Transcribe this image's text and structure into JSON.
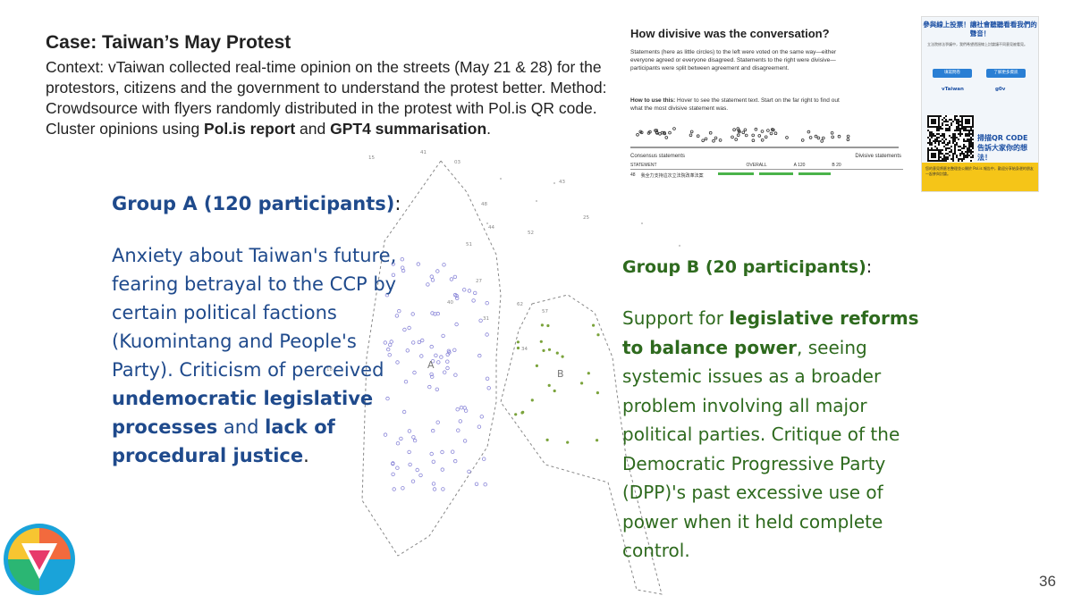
{
  "slide": {
    "title": "Case: Taiwan’s May Protest",
    "context_line": "Context: vTaiwan collected real-time opinion on the streets (May 21 & 28) for the protestors, citizens and the government to understand the protest better.",
    "method_prefix": "Method: Crowdsource with flyers randomly distributed in the protest with Pol.is QR code. Cluster opinions using ",
    "method_bold1": "Pol.is report",
    "method_mid": " and ",
    "method_bold2": "GPT4 summarisation",
    "method_end": ".",
    "page_number": "36"
  },
  "group_a": {
    "heading": "Group A (120 participants)",
    "colon": ":",
    "body_plain1": "Anxiety about Taiwan's future, fearing betrayal to the CCP by certain political factions (Kuomintang and People's Party). Criticism of perceived ",
    "body_bold1": "undemocratic legislative processes",
    "body_plain2": " and ",
    "body_bold2": "lack of procedural justice",
    "body_end": "."
  },
  "group_b": {
    "heading": "Group B (20 participants)",
    "colon": ":",
    "body_plain1": "Support for ",
    "body_bold1": "legislative reforms to balance power",
    "body_plain2": ", seeing systemic issues as a broader problem involving all major political parties. Critique of the Democratic Progressive Party (DPP)'s past excessive use of power when it held complete control."
  },
  "plot": {
    "label_a": "A",
    "label_b": "B",
    "point_labels": [
      "15",
      "41",
      "03",
      "25",
      "48",
      "52",
      "44",
      "62",
      "57",
      "43",
      "34",
      "51",
      "27",
      "40",
      "31",
      "18"
    ]
  },
  "report": {
    "title": "How divisive was the conversation?",
    "para1": "Statements (here as little circles) to the left were voted on the same way—either everyone agreed or everyone disagreed. Statements to the right were divisive—participants were split between agreement and disagreement.",
    "para2_bold": "How to use this:",
    "para2": " Hover to see the statement text. Start on the far right to find out what the most divisive statement was.",
    "consensus_label": "Consensus statements",
    "divisive_label": "Divisive statements",
    "col_statement": "STATEMENT",
    "col_overall": "OVERALL",
    "col_a": "A 120",
    "col_b": "B 20",
    "row_id": "48",
    "row_text": "我全力支持這次立法院改革法案"
  },
  "flyer": {
    "title": "參與線上投票！讓社會聽聽看看我們的聲音！",
    "text": "立法院修法爭議中，我們希望透過線上討論讓不同意見被看見。",
    "btn1": "填寫問卷",
    "btn2": "了解更多資訊",
    "logo1": "vTaiwan",
    "logo2": "g0v",
    "qr_text": "掃描QR CODE 告訴大家你的想法！",
    "foot_text": "您的意見將匿名整理並公開於 Pol.is 報告中，歡迎分享給身邊的朋友一起參與討論。"
  },
  "colors": {
    "group_a": "#1f4a8c",
    "group_b": "#2e6a1e",
    "points_a": "#8a86d8",
    "points_b": "#7aa33b"
  }
}
